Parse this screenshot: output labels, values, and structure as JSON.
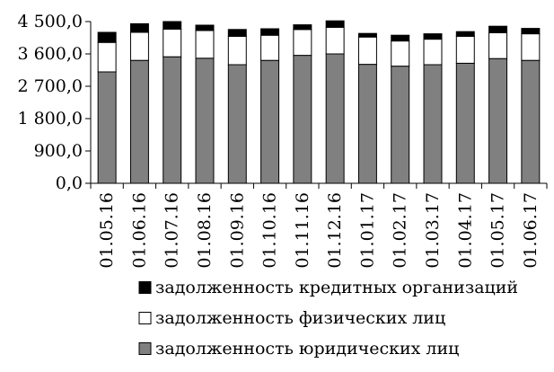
{
  "chart_data": {
    "type": "bar",
    "stacked": true,
    "title": "",
    "xlabel": "",
    "ylabel": "",
    "ylim": [
      0,
      4500
    ],
    "yticks": [
      "0,0",
      "900,0",
      "1 800,0",
      "2 700,0",
      "3 600,0",
      "4 500,0"
    ],
    "ytick_values": [
      0,
      900,
      1800,
      2700,
      3600,
      4500
    ],
    "grid": false,
    "legend_position": "bottom",
    "categories": [
      "01.05.16",
      "01.06.16",
      "01.07.16",
      "01.08.16",
      "01.09.16",
      "01.10.16",
      "01.11.16",
      "01.12.16",
      "01.01.17",
      "01.02.17",
      "01.03.17",
      "01.04.17",
      "01.05.17",
      "01.06.17"
    ],
    "series": [
      {
        "name": "задолженность юридических лиц",
        "color": "#808080",
        "values": [
          3100,
          3420,
          3520,
          3480,
          3300,
          3420,
          3560,
          3600,
          3310,
          3260,
          3300,
          3340,
          3470,
          3420
        ]
      },
      {
        "name": "задолженность физических лиц",
        "color": "#ffffff",
        "values": [
          820,
          780,
          770,
          770,
          790,
          700,
          720,
          740,
          760,
          700,
          710,
          750,
          720,
          740
        ]
      },
      {
        "name": "задолженность кредитных организаций",
        "color": "#000000",
        "values": [
          280,
          240,
          210,
          150,
          190,
          180,
          130,
          180,
          100,
          160,
          150,
          130,
          180,
          150
        ]
      }
    ],
    "legend_order": [
      2,
      1,
      0
    ]
  }
}
